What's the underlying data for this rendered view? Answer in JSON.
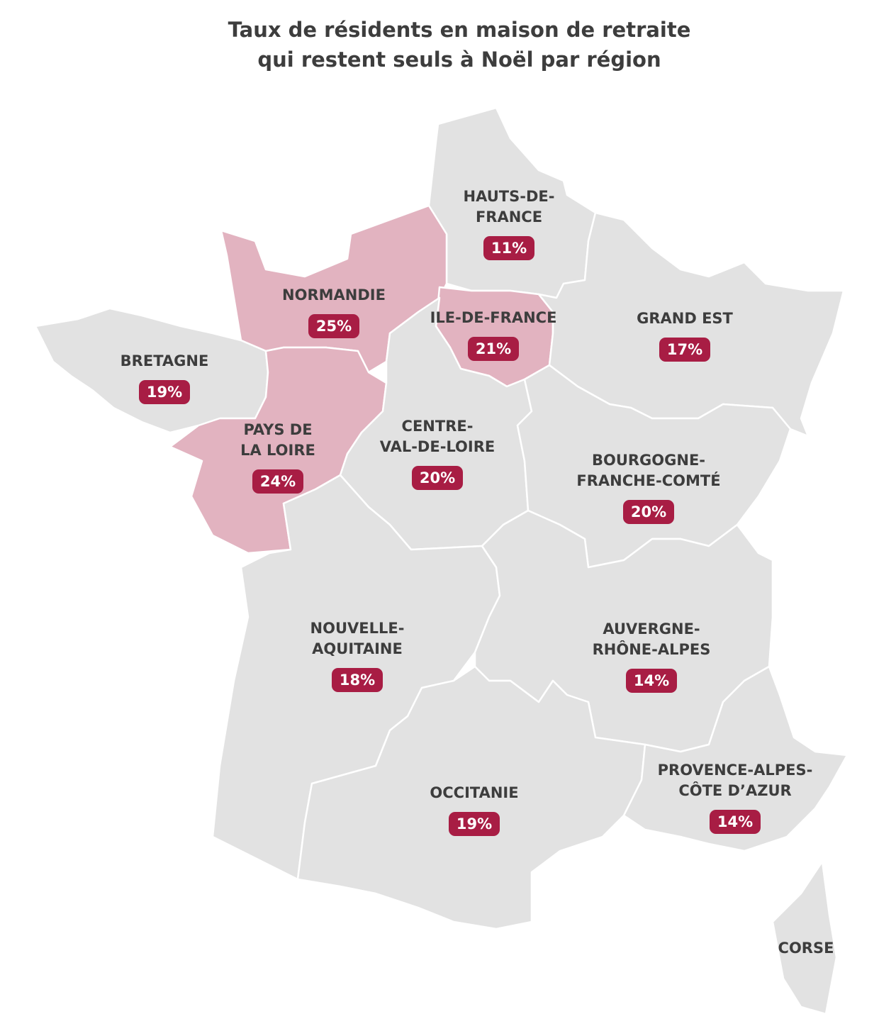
{
  "chart_data": {
    "type": "choropleth",
    "title": [
      "Taux de résidents en maison de retraite",
      "qui restent seuls à Noël par région"
    ],
    "badge_color": "#a81d44",
    "regions": [
      {
        "name": [
          "HAUTS-DE-",
          "FRANCE"
        ],
        "value": 11,
        "value_label": "11%",
        "color": "#e2e2e2"
      },
      {
        "name": [
          "NORMANDIE"
        ],
        "value": 25,
        "value_label": "25%",
        "color": "#e2b3c0"
      },
      {
        "name": [
          "ILE-DE-FRANCE"
        ],
        "value": 21,
        "value_label": "21%",
        "color": "#e2b3c0"
      },
      {
        "name": [
          "GRAND EST"
        ],
        "value": 17,
        "value_label": "17%",
        "color": "#e2e2e2"
      },
      {
        "name": [
          "BRETAGNE"
        ],
        "value": 19,
        "value_label": "19%",
        "color": "#e2e2e2"
      },
      {
        "name": [
          "PAYS DE",
          "LA LOIRE"
        ],
        "value": 24,
        "value_label": "24%",
        "color": "#e2b3c0"
      },
      {
        "name": [
          "CENTRE-",
          "VAL-DE-LOIRE"
        ],
        "value": 20,
        "value_label": "20%",
        "color": "#e2e2e2"
      },
      {
        "name": [
          "BOURGOGNE-",
          "FRANCHE-COMTÉ"
        ],
        "value": 20,
        "value_label": "20%",
        "color": "#e2e2e2"
      },
      {
        "name": [
          "NOUVELLE-",
          "AQUITAINE"
        ],
        "value": 18,
        "value_label": "18%",
        "color": "#e2e2e2"
      },
      {
        "name": [
          "AUVERGNE-",
          "RHÔNE-ALPES"
        ],
        "value": 14,
        "value_label": "14%",
        "color": "#e2e2e2"
      },
      {
        "name": [
          "OCCITANIE"
        ],
        "value": 19,
        "value_label": "19%",
        "color": "#e2e2e2"
      },
      {
        "name": [
          "PROVENCE-ALPES-",
          "CÔTE D’AZUR"
        ],
        "value": 14,
        "value_label": "14%",
        "color": "#e2e2e2"
      },
      {
        "name": [
          "CORSE"
        ],
        "color": "#e2e2e2"
      }
    ]
  }
}
